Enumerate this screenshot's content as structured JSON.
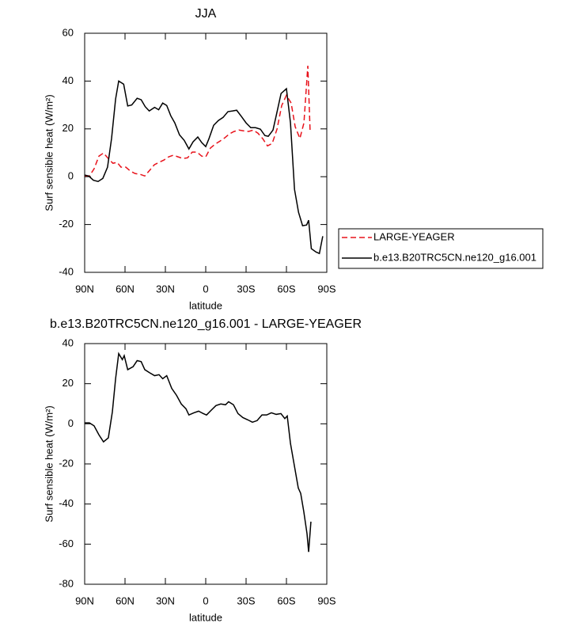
{
  "chart_data": [
    {
      "type": "line",
      "title": "JJA",
      "x_label": "latitude",
      "y_label": "Surf sensible heat (W/m²)",
      "xlim": [
        90,
        -90
      ],
      "xticks": [
        {
          "value": 90,
          "label": "90N"
        },
        {
          "value": 60,
          "label": "60N"
        },
        {
          "value": 30,
          "label": "30N"
        },
        0,
        {
          "value": -30,
          "label": "30S"
        },
        {
          "value": -60,
          "label": "60S"
        },
        {
          "value": -90,
          "label": "90S"
        }
      ],
      "ylim": [
        -40,
        60
      ],
      "yticks": [
        -40,
        -20,
        0,
        20,
        40,
        60
      ],
      "legend": "right",
      "series": [
        {
          "name": "LARGE-YEAGER",
          "color": "#e8131c",
          "dash": true,
          "x": [
            90,
            86.5,
            83,
            79.4,
            76,
            72.4,
            69,
            65.9,
            63,
            59.4,
            55.9,
            52.4,
            48.8,
            45.3,
            41.8,
            38.2,
            34.7,
            31,
            27.6,
            24,
            20.6,
            17,
            13.5,
            10,
            6.5,
            3,
            0,
            -3.5,
            -7,
            -10.6,
            -14,
            -17.6,
            -21,
            -24.7,
            -28,
            -31.8,
            -35.3,
            -38.8,
            -42.4,
            -45.9,
            -49.4,
            -53,
            -56.5,
            -60,
            -63.5,
            -66.5,
            -70,
            -73,
            -75.9,
            -77.6
          ],
          "values": [
            0.3,
            0.3,
            3.3,
            8.6,
            9.9,
            7.6,
            5.6,
            6,
            4,
            4,
            2.3,
            1.3,
            1,
            0.3,
            2.6,
            5,
            6,
            7,
            8.3,
            9,
            8.3,
            7.6,
            7.9,
            10.3,
            10.3,
            8.6,
            8.3,
            12,
            13.6,
            14.9,
            16.2,
            17.9,
            18.9,
            19.5,
            19.2,
            18.9,
            19.5,
            18.2,
            15.9,
            12.9,
            13.9,
            19.9,
            29.8,
            34.1,
            30.8,
            20.9,
            16,
            22.5,
            46.4,
            18.9
          ]
        },
        {
          "name": "b.e13.B20TRC5CN.ne120_g16.001",
          "color": "#000000",
          "dash": false,
          "x": [
            90,
            87,
            83.5,
            80,
            76.5,
            73,
            70,
            67,
            64.7,
            61,
            58,
            55,
            51,
            48,
            45,
            42,
            38,
            35,
            32,
            29,
            26,
            23,
            19.5,
            16,
            12.5,
            9.4,
            5.9,
            3,
            0,
            -2.4,
            -5.9,
            -9.4,
            -12.9,
            -16.5,
            -20,
            -23,
            -26.5,
            -30,
            -33.5,
            -37,
            -40.6,
            -44,
            -46.5,
            -50,
            -52.5,
            -56,
            -60,
            -63,
            -66,
            -69,
            -72,
            -75,
            -76.5,
            -78.5,
            -82,
            -84.5,
            -87
          ],
          "values": [
            0.7,
            0.3,
            -1.5,
            -2,
            -0.7,
            4,
            16,
            32.5,
            40,
            38.7,
            29.6,
            30,
            32.8,
            32.2,
            29.3,
            27.5,
            29,
            28,
            30.8,
            29.8,
            25.5,
            22.5,
            17.5,
            15.2,
            11.6,
            14.6,
            16.6,
            14.3,
            12.6,
            15.9,
            21.5,
            23.5,
            24.8,
            27.2,
            27.5,
            27.8,
            25.2,
            22.5,
            20.5,
            20.5,
            19.9,
            17.2,
            16.9,
            19.5,
            25.8,
            34.8,
            36.8,
            22.5,
            -5.3,
            -14.9,
            -20.5,
            -20.2,
            -18.2,
            -30.1,
            -31.5,
            -32.1,
            -24.9
          ]
        }
      ]
    },
    {
      "type": "line",
      "title": "b.e13.B20TRC5CN.ne120_g16.001 - LARGE-YEAGER",
      "x_label": "latitude",
      "y_label": "Surf sensible heat (W/m²)",
      "xlim": [
        90,
        -90
      ],
      "xticks": [
        {
          "value": 90,
          "label": "90N"
        },
        {
          "value": 60,
          "label": "60N"
        },
        {
          "value": 30,
          "label": "30N"
        },
        0,
        {
          "value": -30,
          "label": "30S"
        },
        {
          "value": -60,
          "label": "60S"
        },
        {
          "value": -90,
          "label": "90S"
        }
      ],
      "ylim": [
        -80,
        40
      ],
      "yticks": [
        -80,
        -60,
        -40,
        -20,
        0,
        20,
        40
      ],
      "series": [
        {
          "color": "#000000",
          "dash": false,
          "x": [
            90,
            86.5,
            83,
            79.4,
            76,
            72.4,
            69.4,
            67,
            64.7,
            62,
            60.6,
            58,
            54,
            51,
            48,
            45.3,
            41.8,
            38,
            34.7,
            32,
            29,
            25.3,
            21.7,
            18.2,
            14.7,
            12.5,
            8.8,
            5.3,
            1.8,
            -0.6,
            -4.1,
            -7.6,
            -11.2,
            -14.7,
            -17,
            -20.6,
            -24,
            -27.6,
            -31.2,
            -34.7,
            -38.2,
            -41.8,
            -45.3,
            -48.8,
            -52.4,
            -55.9,
            -58.8,
            -60.6,
            -63,
            -66,
            -68.8,
            -70.6,
            -72.9,
            -75.3,
            -76.5,
            -78.2
          ],
          "values": [
            0.5,
            0.5,
            -1,
            -5.5,
            -9,
            -7,
            6,
            22.5,
            35,
            32,
            34,
            27,
            28.5,
            31.5,
            31,
            27,
            25.5,
            24,
            24.5,
            22.5,
            24,
            17.7,
            14.2,
            9.9,
            7.5,
            4.4,
            5.5,
            6.3,
            5.1,
            4.4,
            6.8,
            9.1,
            9.9,
            9.5,
            11,
            9.5,
            5.1,
            3.1,
            2,
            0.8,
            1.6,
            4.4,
            4.4,
            5.5,
            4.7,
            5.1,
            2.6,
            3.9,
            -9.8,
            -21.3,
            -32,
            -34.7,
            -43.8,
            -54.8,
            -63.9,
            -48.8
          ]
        }
      ]
    }
  ]
}
